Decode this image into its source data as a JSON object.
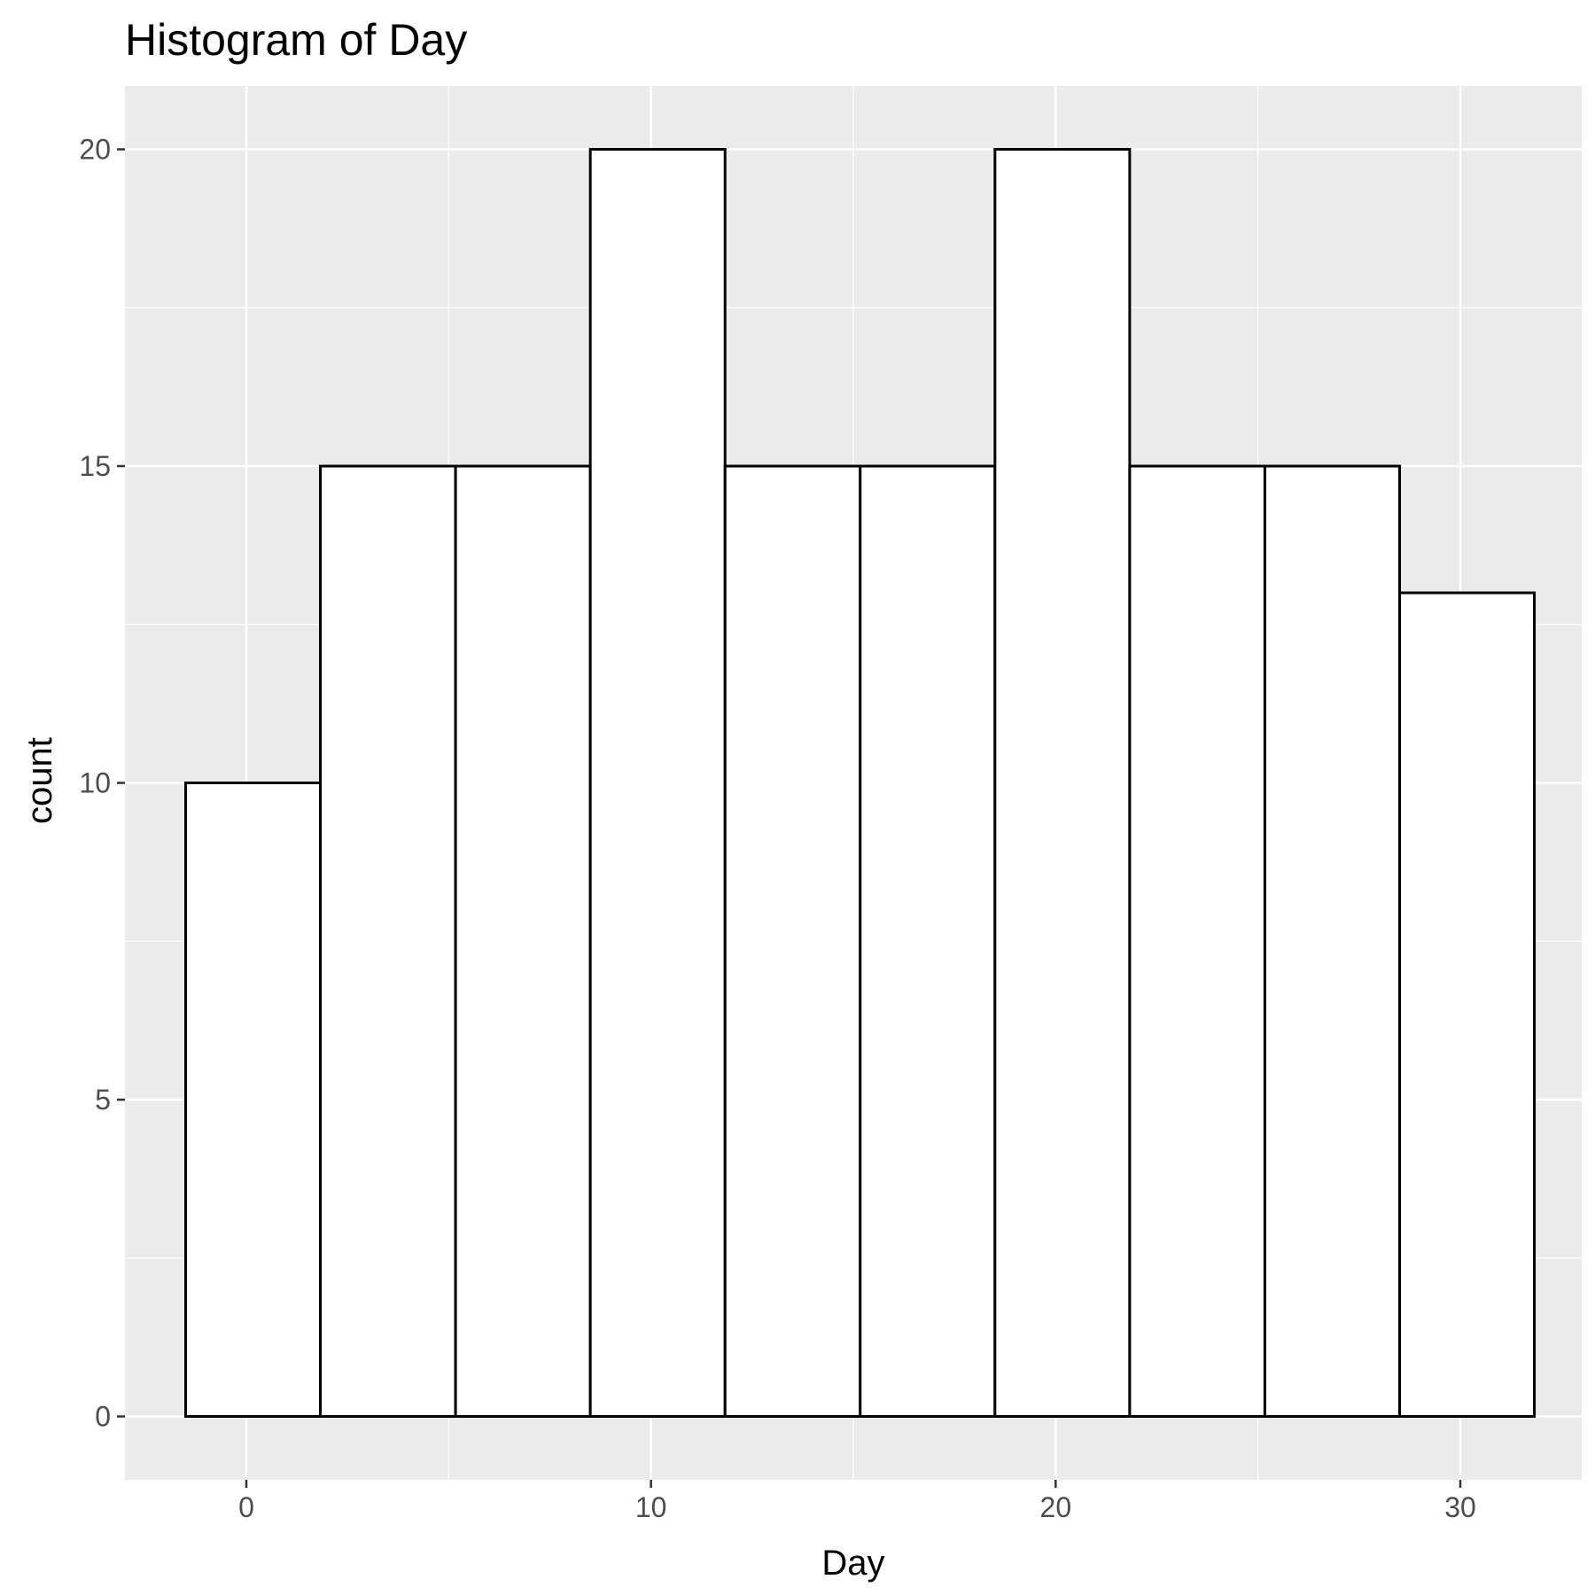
{
  "chart_data": {
    "type": "bar",
    "title": "Histogram of Day",
    "xlabel": "Day",
    "ylabel": "count",
    "bins": [
      {
        "x0": -1.5,
        "x1": 1.83,
        "count": 10
      },
      {
        "x0": 1.83,
        "x1": 5.17,
        "count": 15
      },
      {
        "x0": 5.17,
        "x1": 8.5,
        "count": 15
      },
      {
        "x0": 8.5,
        "x1": 11.83,
        "count": 20
      },
      {
        "x0": 11.83,
        "x1": 15.17,
        "count": 15
      },
      {
        "x0": 15.17,
        "x1": 18.5,
        "count": 15
      },
      {
        "x0": 18.5,
        "x1": 21.83,
        "count": 20
      },
      {
        "x0": 21.83,
        "x1": 25.17,
        "count": 15
      },
      {
        "x0": 25.17,
        "x1": 28.5,
        "count": 15
      },
      {
        "x0": 28.5,
        "x1": 31.83,
        "count": 13
      }
    ],
    "xlim": [
      -3,
      33
    ],
    "ylim": [
      -1,
      21
    ],
    "x_ticks": [
      0,
      10,
      20,
      30
    ],
    "y_ticks": [
      0,
      5,
      10,
      15,
      20
    ],
    "x_tick_labels": [
      "0",
      "10",
      "20",
      "30"
    ],
    "y_tick_labels": [
      "0",
      "5",
      "10",
      "15",
      "20"
    ],
    "grid": true,
    "legend": "none",
    "colors": {
      "panel_background": "#ebebeb",
      "grid": "#ffffff",
      "bar_fill": "#ffffff",
      "bar_outline": "#000000",
      "tick_label": "#4d4d4d"
    }
  }
}
